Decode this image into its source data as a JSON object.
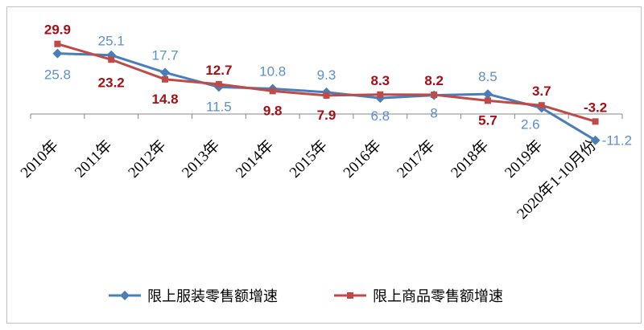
{
  "chart_data": {
    "type": "line",
    "title": "",
    "xlabel": "",
    "ylabel": "",
    "categories": [
      "2010年",
      "2011年",
      "2012年",
      "2013年",
      "2014年",
      "2015年",
      "2016年",
      "2017年",
      "2018年",
      "2019年",
      "2020年1-10月份"
    ],
    "series": [
      {
        "name": "限上服装零售额增速",
        "color": "#4a7ebb",
        "marker": "diamond",
        "values": [
          25.8,
          25.1,
          17.7,
          11.5,
          10.8,
          9.3,
          6.8,
          8,
          8.5,
          2.6,
          -11.2
        ],
        "label_color": "#5b8fd0"
      },
      {
        "name": "限上商品零售额增速",
        "color": "#be4b48",
        "marker": "square",
        "values": [
          29.9,
          23.2,
          14.8,
          12.7,
          9.8,
          7.9,
          8.3,
          8.2,
          5.7,
          3.7,
          -3.2
        ],
        "label_color": "#a50f15"
      }
    ],
    "ylim": [
      -13,
      33
    ],
    "grid": false,
    "legend_position": "bottom"
  }
}
